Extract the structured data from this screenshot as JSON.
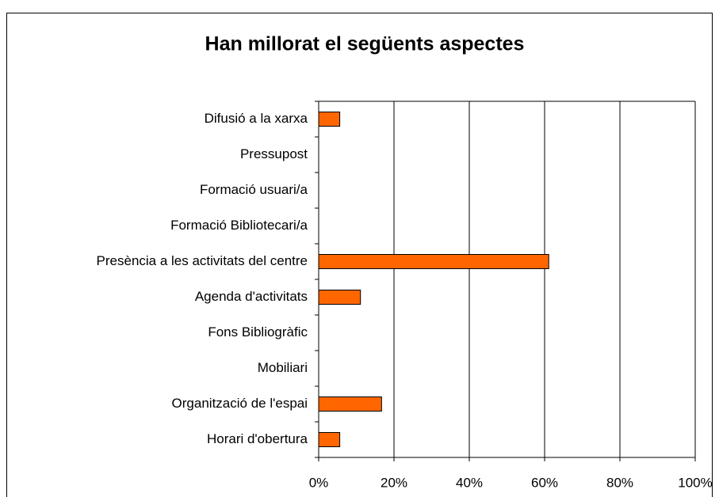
{
  "chart_data": {
    "type": "bar",
    "orientation": "horizontal",
    "title": "Han millorat el següents aspectes",
    "categories": [
      "Difusió a la xarxa",
      "Pressupost",
      "Formació usuari/a",
      "Formació Bibliotecari/a",
      "Presència a les activitats del centre",
      "Agenda d'activitats",
      "Fons Bibliogràfic",
      "Mobiliari",
      "Organització de l'espai",
      "Horari d'obertura"
    ],
    "values": [
      5.6,
      0,
      0,
      0,
      61.1,
      11.1,
      0,
      0,
      16.7,
      5.6
    ],
    "color": "#ff6600",
    "xlim": [
      0,
      100
    ],
    "xticks": [
      {
        "value": 0,
        "label": "0%"
      },
      {
        "value": 20,
        "label": "20%"
      },
      {
        "value": 40,
        "label": "40%"
      },
      {
        "value": 60,
        "label": "60%"
      },
      {
        "value": 80,
        "label": "80%"
      },
      {
        "value": 100,
        "label": "100%"
      }
    ],
    "grid": true
  }
}
